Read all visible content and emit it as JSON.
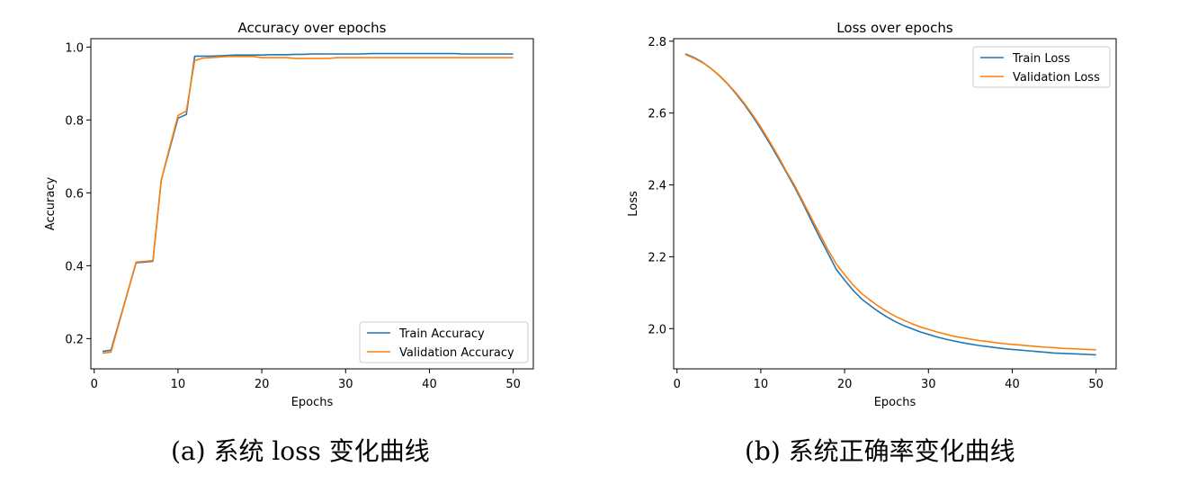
{
  "colors": {
    "series1": "#1f77b4",
    "series2": "#ff7f0e",
    "axis": "#000000",
    "text": "#000000"
  },
  "captions": {
    "a": "(a) 系统 loss 变化曲线",
    "b": "(b) 系统正确率变化曲线"
  },
  "chart_data": [
    {
      "type": "line",
      "title": "Accuracy over epochs",
      "xlabel": "Epochs",
      "ylabel": "Accuracy",
      "xlim": [
        -0.4,
        52.4
      ],
      "ylim": [
        0.117,
        1.023
      ],
      "xticks": [
        "0",
        "10",
        "20",
        "30",
        "40",
        "50"
      ],
      "yticks": [
        "0.2",
        "0.4",
        "0.6",
        "0.8",
        "1.0"
      ],
      "grid": false,
      "legend": "lower-right",
      "series": [
        {
          "name": "Train Accuracy",
          "x": [
            1,
            2,
            3,
            4,
            5,
            6,
            7,
            8,
            9,
            10,
            11,
            12,
            13,
            14,
            15,
            16,
            17,
            18,
            19,
            20,
            21,
            22,
            23,
            24,
            25,
            26,
            27,
            28,
            29,
            30,
            31,
            32,
            33,
            34,
            35,
            36,
            37,
            38,
            39,
            40,
            41,
            42,
            43,
            44,
            45,
            46,
            47,
            48,
            49,
            50
          ],
          "y": [
            0.165,
            0.168,
            0.248,
            0.328,
            0.408,
            0.41,
            0.412,
            0.635,
            0.72,
            0.805,
            0.815,
            0.975,
            0.975,
            0.975,
            0.976,
            0.977,
            0.978,
            0.978,
            0.978,
            0.978,
            0.979,
            0.979,
            0.979,
            0.98,
            0.98,
            0.981,
            0.981,
            0.981,
            0.981,
            0.981,
            0.981,
            0.981,
            0.982,
            0.982,
            0.982,
            0.982,
            0.982,
            0.982,
            0.982,
            0.982,
            0.982,
            0.982,
            0.982,
            0.981,
            0.981,
            0.981,
            0.981,
            0.981,
            0.981,
            0.981
          ]
        },
        {
          "name": "Validation Accuracy",
          "x": [
            1,
            2,
            3,
            4,
            5,
            6,
            7,
            8,
            9,
            10,
            11,
            12,
            13,
            14,
            15,
            16,
            17,
            18,
            19,
            20,
            21,
            22,
            23,
            24,
            25,
            26,
            27,
            28,
            29,
            30,
            31,
            32,
            33,
            34,
            35,
            36,
            37,
            38,
            39,
            40,
            41,
            42,
            43,
            44,
            45,
            46,
            47,
            48,
            49,
            50
          ],
          "y": [
            0.16,
            0.163,
            0.245,
            0.327,
            0.41,
            0.412,
            0.414,
            0.635,
            0.725,
            0.812,
            0.825,
            0.963,
            0.97,
            0.971,
            0.973,
            0.974,
            0.974,
            0.974,
            0.974,
            0.971,
            0.971,
            0.971,
            0.971,
            0.969,
            0.969,
            0.969,
            0.969,
            0.969,
            0.971,
            0.971,
            0.971,
            0.971,
            0.971,
            0.971,
            0.971,
            0.971,
            0.971,
            0.971,
            0.971,
            0.971,
            0.971,
            0.971,
            0.971,
            0.971,
            0.971,
            0.971,
            0.971,
            0.971,
            0.971,
            0.971
          ]
        }
      ]
    },
    {
      "type": "line",
      "title": "Loss over epochs",
      "xlabel": "Epochs",
      "ylabel": "Loss",
      "xlim": [
        -0.4,
        52.4
      ],
      "ylim": [
        1.888,
        2.807
      ],
      "xticks": [
        "0",
        "10",
        "20",
        "30",
        "40",
        "50"
      ],
      "yticks": [
        "2.0",
        "2.2",
        "2.4",
        "2.6",
        "2.8"
      ],
      "grid": false,
      "legend": "top-right",
      "series": [
        {
          "name": "Train Loss",
          "x": [
            1,
            2,
            3,
            4,
            5,
            6,
            7,
            8,
            9,
            10,
            11,
            12,
            13,
            14,
            15,
            16,
            17,
            18,
            19,
            20,
            21,
            22,
            23,
            24,
            25,
            26,
            27,
            28,
            29,
            30,
            31,
            32,
            33,
            34,
            35,
            36,
            37,
            38,
            39,
            40,
            41,
            42,
            43,
            44,
            45,
            46,
            47,
            48,
            49,
            50
          ],
          "y": [
            2.765,
            2.755,
            2.742,
            2.725,
            2.705,
            2.682,
            2.655,
            2.625,
            2.592,
            2.556,
            2.518,
            2.478,
            2.437,
            2.395,
            2.35,
            2.302,
            2.255,
            2.21,
            2.165,
            2.135,
            2.107,
            2.083,
            2.065,
            2.048,
            2.033,
            2.02,
            2.009,
            2.0,
            1.991,
            1.984,
            1.977,
            1.971,
            1.966,
            1.961,
            1.957,
            1.953,
            1.95,
            1.947,
            1.944,
            1.942,
            1.94,
            1.938,
            1.936,
            1.934,
            1.932,
            1.931,
            1.93,
            1.929,
            1.928,
            1.927
          ]
        },
        {
          "name": "Validation Loss",
          "x": [
            1,
            2,
            3,
            4,
            5,
            6,
            7,
            8,
            9,
            10,
            11,
            12,
            13,
            14,
            15,
            16,
            17,
            18,
            19,
            20,
            21,
            22,
            23,
            24,
            25,
            26,
            27,
            28,
            29,
            30,
            31,
            32,
            33,
            34,
            35,
            36,
            37,
            38,
            39,
            40,
            41,
            42,
            43,
            44,
            45,
            46,
            47,
            48,
            49,
            50
          ],
          "y": [
            2.763,
            2.753,
            2.741,
            2.725,
            2.706,
            2.683,
            2.657,
            2.628,
            2.596,
            2.561,
            2.523,
            2.483,
            2.44,
            2.4,
            2.355,
            2.31,
            2.265,
            2.22,
            2.18,
            2.15,
            2.122,
            2.098,
            2.08,
            2.063,
            2.048,
            2.035,
            2.024,
            2.014,
            2.005,
            1.998,
            1.991,
            1.985,
            1.979,
            1.975,
            1.971,
            1.967,
            1.964,
            1.961,
            1.958,
            1.956,
            1.954,
            1.952,
            1.95,
            1.948,
            1.947,
            1.945,
            1.944,
            1.943,
            1.942,
            1.941
          ]
        }
      ]
    }
  ]
}
